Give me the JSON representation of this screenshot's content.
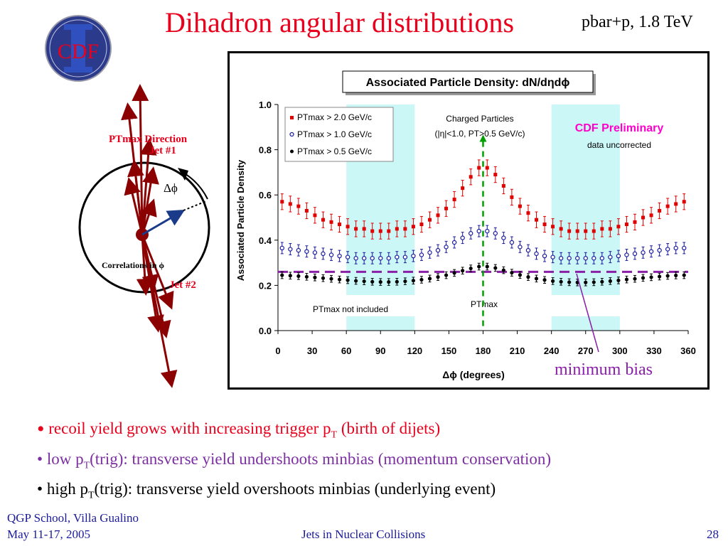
{
  "slide": {
    "title": "Dihadron angular distributions",
    "subtitle": "pbar+p, 1.8 TeV",
    "logo_text": "CDF"
  },
  "diagram": {
    "ptmax_direction": "PTmax Direction",
    "jet1": "Jet #1",
    "jet2": "Jet #2",
    "delta_phi": "Δϕ",
    "correlations": "Correlations in ϕ"
  },
  "chart_data": {
    "type": "scatter",
    "title": "Associated Particle Density: dN/dηdϕ",
    "xlabel": "Δϕ  (degrees)",
    "ylabel": "Associated Particle Density",
    "xlim": [
      0,
      360
    ],
    "ylim": [
      0,
      1.0
    ],
    "xticks": [
      "0",
      "30",
      "60",
      "90",
      "120",
      "150",
      "180",
      "210",
      "240",
      "270",
      "300",
      "330",
      "360"
    ],
    "yticks": [
      "0.0",
      "0.2",
      "0.4",
      "0.6",
      "0.8",
      "1.0"
    ],
    "legend_position": "top-left",
    "shaded_regions": [
      [
        60,
        120
      ],
      [
        240,
        300
      ]
    ],
    "annotations": {
      "charged": "Charged Particles",
      "cuts": "(|η|<1.0, PT>0.5 GeV/c)",
      "preliminary": "CDF Preliminary",
      "uncorrected": "data uncorrected",
      "ptmax": "PTmax",
      "ptmax_not_included": "PTmax not included"
    },
    "minimum_bias_level": 0.26,
    "x": [
      3.6,
      10.8,
      18,
      25.2,
      32.4,
      39.6,
      46.8,
      54,
      61.2,
      68.4,
      75.6,
      82.8,
      90,
      97.2,
      104.4,
      111.6,
      118.8,
      126,
      133.2,
      140.4,
      147.6,
      154.8,
      162,
      169.2,
      176.4,
      183.6,
      190.8,
      198,
      205.2,
      212.4,
      219.6,
      226.8,
      234,
      241.2,
      248.4,
      255.6,
      262.8,
      270,
      277.2,
      284.4,
      291.6,
      298.8,
      306,
      313.2,
      320.4,
      327.6,
      334.8,
      342,
      349.2,
      356.4
    ],
    "series": [
      {
        "name": "PTmax > 2.0 GeV/c",
        "marker": "square",
        "color": "#e00000",
        "values": [
          0.57,
          0.56,
          0.55,
          0.53,
          0.51,
          0.49,
          0.48,
          0.47,
          0.46,
          0.45,
          0.45,
          0.44,
          0.44,
          0.44,
          0.45,
          0.45,
          0.46,
          0.47,
          0.49,
          0.51,
          0.54,
          0.58,
          0.63,
          0.68,
          0.72,
          0.72,
          0.69,
          0.64,
          0.59,
          0.55,
          0.52,
          0.49,
          0.47,
          0.46,
          0.45,
          0.44,
          0.44,
          0.44,
          0.44,
          0.45,
          0.45,
          0.46,
          0.47,
          0.48,
          0.5,
          0.51,
          0.53,
          0.55,
          0.56,
          0.57
        ],
        "error": 0.035
      },
      {
        "name": "PTmax > 1.0 GeV/c",
        "marker": "circle-open",
        "color": "#1a1aa0",
        "values": [
          0.365,
          0.36,
          0.355,
          0.35,
          0.345,
          0.34,
          0.335,
          0.33,
          0.325,
          0.32,
          0.32,
          0.32,
          0.32,
          0.32,
          0.325,
          0.325,
          0.33,
          0.335,
          0.345,
          0.355,
          0.37,
          0.39,
          0.41,
          0.43,
          0.44,
          0.44,
          0.43,
          0.41,
          0.39,
          0.37,
          0.355,
          0.34,
          0.33,
          0.325,
          0.32,
          0.32,
          0.32,
          0.32,
          0.32,
          0.32,
          0.325,
          0.33,
          0.335,
          0.34,
          0.345,
          0.35,
          0.355,
          0.36,
          0.365,
          0.365
        ],
        "error": 0.025
      },
      {
        "name": "PTmax > 0.5 GeV/c",
        "marker": "circle-filled",
        "color": "#000000",
        "values": [
          0.245,
          0.243,
          0.241,
          0.238,
          0.235,
          0.232,
          0.229,
          0.226,
          0.223,
          0.22,
          0.218,
          0.216,
          0.215,
          0.215,
          0.216,
          0.218,
          0.221,
          0.225,
          0.23,
          0.237,
          0.245,
          0.255,
          0.265,
          0.275,
          0.283,
          0.283,
          0.277,
          0.267,
          0.256,
          0.246,
          0.237,
          0.23,
          0.224,
          0.219,
          0.216,
          0.214,
          0.213,
          0.213,
          0.214,
          0.216,
          0.219,
          0.222,
          0.226,
          0.229,
          0.233,
          0.236,
          0.239,
          0.242,
          0.244,
          0.245
        ],
        "error": 0.015
      }
    ]
  },
  "min_bias_label": "minimum bias",
  "bullets": {
    "b1_pre": "recoil yield grows with increasing trigger p",
    "b1_sub": "T",
    "b1_post": " (birth of dijets)",
    "b2_pre": "low p",
    "b2_sub": "T",
    "b2_post": "(trig): transverse yield undershoots minbias (momentum conservation)",
    "b3_pre": "high p",
    "b3_sub": "T",
    "b3_post": "(trig): transverse yield overshoots minbias (underlying event)"
  },
  "footer": {
    "left1": "QGP School, Villa Gualino",
    "left2": "May 11-17, 2005",
    "center": "Jets in Nuclear Collisions",
    "page": "28"
  },
  "colors": {
    "title": "#e8001c",
    "shade": "#ccf7f7",
    "min_bias": "#8a1fa8",
    "ptmax_line": "#00a000",
    "footer": "#1a1a9a"
  }
}
